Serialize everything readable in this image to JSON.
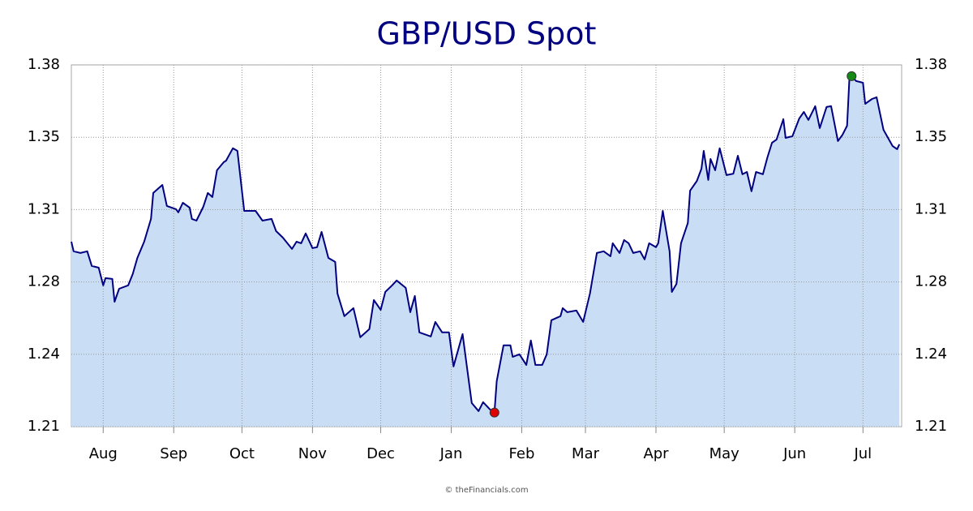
{
  "chart_data": {
    "type": "area",
    "title": "GBP/USD Spot",
    "source": "© theFinancials.com",
    "xlim": [
      0,
      365
    ],
    "xticks": [
      {
        "value": 14,
        "label": "Aug"
      },
      {
        "value": 45,
        "label": "Sep"
      },
      {
        "value": 75,
        "label": "Oct"
      },
      {
        "value": 106,
        "label": "Nov"
      },
      {
        "value": 136,
        "label": "Dec"
      },
      {
        "value": 167,
        "label": "Jan"
      },
      {
        "value": 198,
        "label": "Feb"
      },
      {
        "value": 226,
        "label": "Mar"
      },
      {
        "value": 257,
        "label": "Apr"
      },
      {
        "value": 287,
        "label": "May"
      },
      {
        "value": 318,
        "label": "Jun"
      },
      {
        "value": 348,
        "label": "Jul"
      }
    ],
    "ylim": [
      1.21,
      1.38
    ],
    "yticks": [
      {
        "value": 1.21,
        "label": "1.21"
      },
      {
        "value": 1.244,
        "label": "1.24"
      },
      {
        "value": 1.278,
        "label": "1.28"
      },
      {
        "value": 1.312,
        "label": "1.31"
      },
      {
        "value": 1.346,
        "label": "1.35"
      },
      {
        "value": 1.38,
        "label": "1.38"
      }
    ],
    "grid": true,
    "mirror_y_axis": true,
    "line_color": "#000080",
    "fill_color": "#c9def5",
    "max_color": "#168a16",
    "min_color": "#e00000",
    "series": [
      {
        "x": [
          0,
          1,
          4,
          7,
          9,
          12,
          14,
          15,
          18,
          19,
          21,
          25,
          27,
          29,
          32,
          35,
          36,
          40,
          42,
          46,
          47,
          49,
          52,
          53,
          55,
          58,
          60,
          62,
          64,
          67,
          68,
          71,
          73,
          76,
          81,
          84,
          88,
          90,
          93,
          97,
          99,
          101,
          103,
          106,
          108,
          110,
          113,
          116,
          117,
          120,
          124,
          127,
          131,
          133,
          136,
          138,
          141,
          143,
          147,
          149,
          151,
          153,
          158,
          160,
          163,
          166,
          168,
          172,
          174,
          176,
          179,
          181,
          184,
          186,
          187,
          190,
          193,
          194,
          197,
          200,
          202,
          204,
          207,
          209,
          211,
          215,
          216,
          218,
          222,
          225,
          228,
          231,
          234,
          237,
          238,
          241,
          243,
          245,
          247,
          250,
          252,
          254,
          257,
          258,
          260,
          263,
          264,
          266,
          268,
          271,
          272,
          275,
          277,
          278,
          280,
          281,
          283,
          285,
          288,
          291,
          293,
          295,
          297,
          299,
          301,
          304,
          306,
          308,
          310,
          313,
          314,
          317,
          320,
          322,
          324,
          327,
          329,
          332,
          334,
          337,
          339,
          341,
          342,
          343,
          345,
          348,
          349,
          352,
          354,
          357,
          361,
          363,
          364
        ],
        "values": [
          1.2969,
          1.2924,
          1.2916,
          1.2924,
          1.2855,
          1.2847,
          1.2764,
          1.2798,
          1.2794,
          1.2687,
          1.2748,
          1.2764,
          1.2817,
          1.2893,
          1.2969,
          1.3076,
          1.3198,
          1.3236,
          1.3137,
          1.3122,
          1.3107,
          1.3152,
          1.3129,
          1.3076,
          1.3068,
          1.3133,
          1.3198,
          1.3179,
          1.3305,
          1.3343,
          1.335,
          1.3408,
          1.3396,
          1.3114,
          1.3114,
          1.3068,
          1.3076,
          1.3019,
          1.2988,
          1.2935,
          1.2969,
          1.2962,
          1.3008,
          1.2939,
          1.2943,
          1.3015,
          1.2893,
          1.2874,
          1.2726,
          1.2619,
          1.2657,
          1.252,
          1.2558,
          1.2695,
          1.2649,
          1.2733,
          1.2764,
          1.2787,
          1.2752,
          1.2638,
          1.2714,
          1.2543,
          1.2524,
          1.2592,
          1.2543,
          1.2543,
          1.2383,
          1.2535,
          1.2371,
          1.2211,
          1.2173,
          1.2215,
          1.2181,
          1.2166,
          1.2314,
          1.2482,
          1.2482,
          1.2428,
          1.244,
          1.239,
          1.2505,
          1.239,
          1.239,
          1.244,
          1.26,
          1.2619,
          1.2657,
          1.2638,
          1.2646,
          1.2592,
          1.2726,
          1.2916,
          1.2924,
          1.2901,
          1.2962,
          1.2916,
          1.2977,
          1.2962,
          1.2916,
          1.2924,
          1.2886,
          1.2962,
          1.2943,
          1.2962,
          1.3114,
          1.2924,
          1.2733,
          1.2771,
          1.2962,
          1.3057,
          1.3209,
          1.3255,
          1.3312,
          1.3396,
          1.3259,
          1.3358,
          1.3305,
          1.3408,
          1.3282,
          1.3289,
          1.3373,
          1.3286,
          1.3297,
          1.3206,
          1.3297,
          1.3286,
          1.3366,
          1.3434,
          1.3449,
          1.3545,
          1.3457,
          1.3465,
          1.3549,
          1.3579,
          1.3541,
          1.3606,
          1.3503,
          1.3602,
          1.3606,
          1.3442,
          1.3472,
          1.3514,
          1.3731,
          1.3747,
          1.3724,
          1.3716,
          1.3617,
          1.364,
          1.3648,
          1.3495,
          1.3419,
          1.3404,
          1.3427
        ]
      }
    ]
  }
}
